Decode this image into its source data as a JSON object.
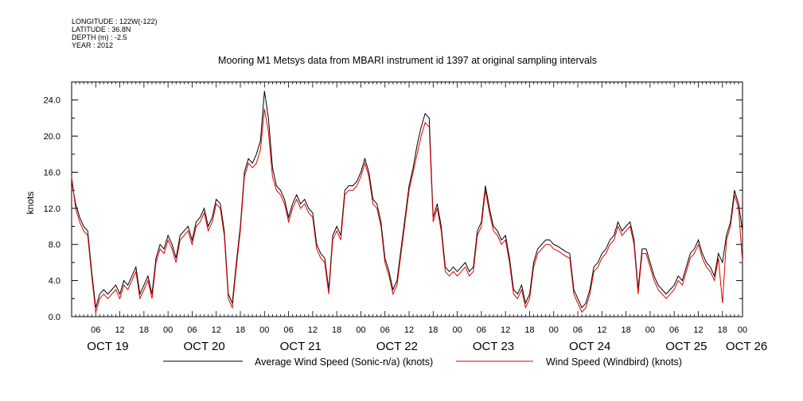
{
  "meta": {
    "longitude": "LONGITUDE : 122W(-122)",
    "latitude": "LATITUDE : 36.8N",
    "depth": "DEPTH (m) : -2.5",
    "year": "YEAR : 2012"
  },
  "chart_data": {
    "type": "line",
    "title": "Mooring M1 Metsys data from MBARI instrument id 1397 at original sampling intervals",
    "ylabel": "knots",
    "xlabel": "",
    "ylim": [
      0,
      26
    ],
    "xlim_hours": [
      0,
      167
    ],
    "yticks": [
      "0.0",
      "4.0",
      "8.0",
      "12.0",
      "16.0",
      "20.0",
      "24.0"
    ],
    "xticks_hour": [
      {
        "hour": 6,
        "label": "06"
      },
      {
        "hour": 12,
        "label": "12"
      },
      {
        "hour": 18,
        "label": "18"
      },
      {
        "hour": 24,
        "label": "00"
      },
      {
        "hour": 30,
        "label": "06"
      },
      {
        "hour": 36,
        "label": "12"
      },
      {
        "hour": 42,
        "label": "18"
      },
      {
        "hour": 48,
        "label": "00"
      },
      {
        "hour": 54,
        "label": "06"
      },
      {
        "hour": 60,
        "label": "12"
      },
      {
        "hour": 66,
        "label": "18"
      },
      {
        "hour": 72,
        "label": "00"
      },
      {
        "hour": 78,
        "label": "06"
      },
      {
        "hour": 84,
        "label": "12"
      },
      {
        "hour": 90,
        "label": "18"
      },
      {
        "hour": 96,
        "label": "00"
      },
      {
        "hour": 102,
        "label": "06"
      },
      {
        "hour": 108,
        "label": "12"
      },
      {
        "hour": 114,
        "label": "18"
      },
      {
        "hour": 120,
        "label": "00"
      },
      {
        "hour": 126,
        "label": "06"
      },
      {
        "hour": 132,
        "label": "12"
      },
      {
        "hour": 138,
        "label": "18"
      },
      {
        "hour": 144,
        "label": "00"
      },
      {
        "hour": 150,
        "label": "06"
      },
      {
        "hour": 156,
        "label": "12"
      },
      {
        "hour": 162,
        "label": "18"
      },
      {
        "hour": 168,
        "label": "00"
      }
    ],
    "day_labels": [
      {
        "hour": 9,
        "label": "OCT 19"
      },
      {
        "hour": 33,
        "label": "OCT 20"
      },
      {
        "hour": 57,
        "label": "OCT 21"
      },
      {
        "hour": 81,
        "label": "OCT 22"
      },
      {
        "hour": 105,
        "label": "OCT 23"
      },
      {
        "hour": 129,
        "label": "OCT 24"
      },
      {
        "hour": 153,
        "label": "OCT 25"
      },
      {
        "hour": 168,
        "label": "OCT 26"
      }
    ],
    "series": [
      {
        "name": "Average Wind Speed (Sonic-n/a) (knots)",
        "color": "#000000",
        "x": [
          0,
          1,
          2,
          3,
          4,
          5,
          6,
          7,
          8,
          9,
          10,
          11,
          12,
          13,
          14,
          15,
          16,
          17,
          18,
          19,
          20,
          21,
          22,
          23,
          24,
          25,
          26,
          27,
          28,
          29,
          30,
          31,
          32,
          33,
          34,
          35,
          36,
          37,
          38,
          39,
          40,
          41,
          42,
          43,
          44,
          45,
          46,
          47,
          48,
          49,
          50,
          51,
          52,
          53,
          54,
          55,
          56,
          57,
          58,
          59,
          60,
          61,
          62,
          63,
          64,
          65,
          66,
          67,
          68,
          69,
          70,
          71,
          72,
          73,
          74,
          75,
          76,
          77,
          78,
          79,
          80,
          81,
          82,
          83,
          84,
          85,
          86,
          87,
          88,
          89,
          90,
          91,
          92,
          93,
          94,
          95,
          96,
          97,
          98,
          99,
          100,
          101,
          102,
          103,
          104,
          105,
          106,
          107,
          108,
          109,
          110,
          111,
          112,
          113,
          114,
          115,
          116,
          117,
          118,
          119,
          120,
          121,
          122,
          123,
          124,
          125,
          126,
          127,
          128,
          129,
          130,
          131,
          132,
          133,
          134,
          135,
          136,
          137,
          138,
          139,
          140,
          141,
          142,
          143,
          144,
          145,
          146,
          147,
          148,
          149,
          150,
          151,
          152,
          153,
          154,
          155,
          156,
          157,
          158,
          159,
          160,
          161,
          162,
          163,
          164,
          165,
          166,
          167
        ],
        "y": [
          15.0,
          12.5,
          11.0,
          10.0,
          9.5,
          5.0,
          1.0,
          2.5,
          3.0,
          2.5,
          3.0,
          3.5,
          2.5,
          4.0,
          3.5,
          4.5,
          5.5,
          2.5,
          3.5,
          4.5,
          2.5,
          6.5,
          8.0,
          7.5,
          9.0,
          8.0,
          6.5,
          9.0,
          9.5,
          10.0,
          8.5,
          10.5,
          11.0,
          12.0,
          10.0,
          11.0,
          13.0,
          12.5,
          9.5,
          2.5,
          1.5,
          6.0,
          10.0,
          16.0,
          17.5,
          17.0,
          18.0,
          19.5,
          25.0,
          22.0,
          16.5,
          14.5,
          14.0,
          13.0,
          11.0,
          12.5,
          13.5,
          12.5,
          13.0,
          12.0,
          11.5,
          8.0,
          7.0,
          6.5,
          3.0,
          9.0,
          10.0,
          9.0,
          14.0,
          14.5,
          14.5,
          15.0,
          16.0,
          17.5,
          16.0,
          13.0,
          12.5,
          10.5,
          6.5,
          5.0,
          3.0,
          4.0,
          7.5,
          11.0,
          14.5,
          16.5,
          19.0,
          21.0,
          22.5,
          22.0,
          11.0,
          12.5,
          10.0,
          5.5,
          5.0,
          5.5,
          5.0,
          5.5,
          6.0,
          5.0,
          5.5,
          9.5,
          10.5,
          14.5,
          12.0,
          10.0,
          9.5,
          8.5,
          9.0,
          6.5,
          3.0,
          2.5,
          3.5,
          1.5,
          2.5,
          6.0,
          7.5,
          8.0,
          8.5,
          8.5,
          8.0,
          7.8,
          7.5,
          7.2,
          7.0,
          3.0,
          2.0,
          1.0,
          1.5,
          3.0,
          5.5,
          6.0,
          7.0,
          7.5,
          8.5,
          9.0,
          10.5,
          9.5,
          10.0,
          10.5,
          8.5,
          3.0,
          7.5,
          7.5,
          6.0,
          4.5,
          3.5,
          3.0,
          2.5,
          3.0,
          3.5,
          4.5,
          4.0,
          5.5,
          7.0,
          7.5,
          8.5,
          7.0,
          6.0,
          5.5,
          4.5,
          7.0,
          6.0,
          9.0,
          10.5,
          14.0,
          12.5,
          9.5
        ]
      },
      {
        "name": "Wind Speed (Windbird) (knots)",
        "color": "#e00000",
        "x": [
          0,
          1,
          2,
          3,
          4,
          5,
          6,
          7,
          8,
          9,
          10,
          11,
          12,
          13,
          14,
          15,
          16,
          17,
          18,
          19,
          20,
          21,
          22,
          23,
          24,
          25,
          26,
          27,
          28,
          29,
          30,
          31,
          32,
          33,
          34,
          35,
          36,
          37,
          38,
          39,
          40,
          41,
          42,
          43,
          44,
          45,
          46,
          47,
          48,
          49,
          50,
          51,
          52,
          53,
          54,
          55,
          56,
          57,
          58,
          59,
          60,
          61,
          62,
          63,
          64,
          65,
          66,
          67,
          68,
          69,
          70,
          71,
          72,
          73,
          74,
          75,
          76,
          77,
          78,
          79,
          80,
          81,
          82,
          83,
          84,
          85,
          86,
          87,
          88,
          89,
          90,
          91,
          92,
          93,
          94,
          95,
          96,
          97,
          98,
          99,
          100,
          101,
          102,
          103,
          104,
          105,
          106,
          107,
          108,
          109,
          110,
          111,
          112,
          113,
          114,
          115,
          116,
          117,
          118,
          119,
          120,
          121,
          122,
          123,
          124,
          125,
          126,
          127,
          128,
          129,
          130,
          131,
          132,
          133,
          134,
          135,
          136,
          137,
          138,
          139,
          140,
          141,
          142,
          143,
          144,
          145,
          146,
          147,
          148,
          149,
          150,
          151,
          152,
          153,
          154,
          155,
          156,
          157,
          158,
          159,
          160,
          161,
          162,
          163,
          164,
          165,
          166,
          167
        ],
        "y": [
          15.5,
          12.0,
          10.5,
          9.5,
          9.0,
          4.5,
          0.5,
          2.0,
          2.5,
          2.0,
          2.5,
          3.0,
          2.0,
          3.5,
          3.0,
          4.0,
          5.0,
          2.0,
          3.0,
          4.0,
          2.0,
          6.0,
          7.5,
          7.0,
          8.5,
          7.5,
          6.0,
          8.5,
          9.0,
          9.5,
          8.0,
          10.0,
          10.5,
          11.5,
          9.5,
          10.5,
          12.5,
          12.0,
          9.0,
          2.0,
          1.0,
          5.5,
          9.5,
          15.5,
          17.0,
          16.5,
          17.0,
          18.5,
          23.0,
          20.5,
          15.5,
          14.0,
          13.5,
          12.5,
          10.5,
          12.0,
          13.0,
          12.0,
          12.5,
          11.5,
          11.0,
          7.5,
          6.5,
          6.0,
          2.5,
          8.5,
          9.5,
          8.5,
          13.5,
          14.0,
          14.0,
          14.5,
          15.5,
          17.0,
          15.5,
          12.5,
          12.0,
          10.0,
          6.0,
          4.5,
          2.5,
          3.5,
          7.0,
          10.5,
          14.0,
          16.0,
          18.0,
          20.0,
          21.5,
          21.0,
          10.5,
          12.0,
          9.5,
          5.0,
          4.5,
          5.0,
          4.5,
          5.0,
          5.5,
          4.5,
          5.0,
          9.0,
          10.0,
          14.0,
          11.5,
          9.5,
          9.0,
          8.0,
          8.5,
          6.0,
          2.5,
          2.0,
          3.0,
          1.0,
          2.0,
          5.5,
          7.0,
          7.5,
          8.0,
          8.0,
          7.5,
          7.3,
          7.0,
          6.7,
          6.5,
          2.5,
          1.5,
          0.5,
          1.0,
          2.5,
          5.0,
          5.5,
          6.5,
          7.0,
          8.0,
          8.5,
          10.0,
          9.0,
          9.5,
          10.0,
          8.0,
          2.5,
          7.0,
          7.0,
          5.5,
          4.0,
          3.0,
          2.5,
          2.0,
          2.5,
          3.0,
          4.0,
          3.5,
          5.0,
          6.5,
          7.0,
          8.0,
          6.5,
          5.5,
          5.0,
          4.0,
          6.5,
          1.5,
          8.5,
          10.0,
          13.5,
          12.0,
          6.0
        ]
      }
    ]
  }
}
